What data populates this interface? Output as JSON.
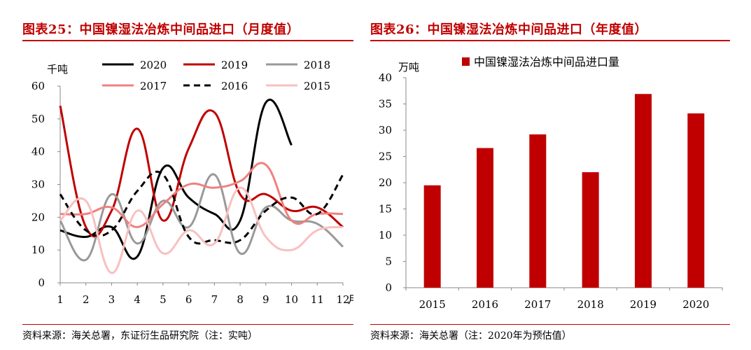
{
  "left": {
    "title": "图表25：中国镍湿法冶炼中间品进口（月度值）",
    "source": "资料来源：海关总署，东证衍生品研究院（注：实吨）"
  },
  "right": {
    "title": "图表26：中国镍湿法冶炼中间品进口（年度值）",
    "source": "资料来源：海关总署（注：2020年为预估值）"
  },
  "chart_data": [
    {
      "type": "line",
      "ylabel": "千吨",
      "xlabel": "月",
      "ylim": [
        0,
        60
      ],
      "yticks": [
        0,
        10,
        20,
        30,
        40,
        50,
        60
      ],
      "x": [
        1,
        2,
        3,
        4,
        5,
        6,
        7,
        8,
        9,
        10,
        11,
        12
      ],
      "grid": false,
      "legend": "top",
      "series": [
        {
          "name": "2020",
          "color": "#000000",
          "dash": false,
          "values": [
            16,
            14,
            17,
            8,
            35,
            26,
            21,
            19,
            55,
            42,
            null,
            null
          ]
        },
        {
          "name": "2019",
          "color": "#c00000",
          "dash": false,
          "values": [
            54,
            17,
            22,
            47,
            19,
            41,
            52,
            27,
            27,
            22,
            23,
            17
          ]
        },
        {
          "name": "2018",
          "color": "#999999",
          "dash": false,
          "values": [
            19,
            7,
            27,
            12,
            25,
            17,
            33,
            9,
            23,
            19,
            18,
            11
          ]
        },
        {
          "name": "2017",
          "color": "#f08080",
          "dash": false,
          "values": [
            21,
            21,
            23,
            17,
            24,
            30,
            29,
            31,
            36,
            19,
            21,
            21
          ]
        },
        {
          "name": "2016",
          "color": "#000000",
          "dash": true,
          "values": [
            27,
            16,
            16,
            28,
            33,
            14,
            13,
            13,
            22,
            26,
            21,
            33
          ]
        },
        {
          "name": "2015",
          "color": "#f8c0c0",
          "dash": false,
          "values": [
            19,
            25,
            3,
            22,
            9,
            16,
            12,
            29,
            14,
            10,
            16,
            17
          ]
        }
      ]
    },
    {
      "type": "bar",
      "ylabel": "万吨",
      "ylim": [
        0,
        40
      ],
      "yticks": [
        0,
        5,
        10,
        15,
        20,
        25,
        30,
        35,
        40
      ],
      "categories": [
        "2015",
        "2016",
        "2017",
        "2018",
        "2019",
        "2020"
      ],
      "grid": false,
      "legend": "top",
      "series": [
        {
          "name": "中国镍湿法冶炼中间品进口量",
          "color": "#c00000",
          "values": [
            19.5,
            26.6,
            29.2,
            22.0,
            36.9,
            33.2
          ]
        }
      ]
    }
  ]
}
